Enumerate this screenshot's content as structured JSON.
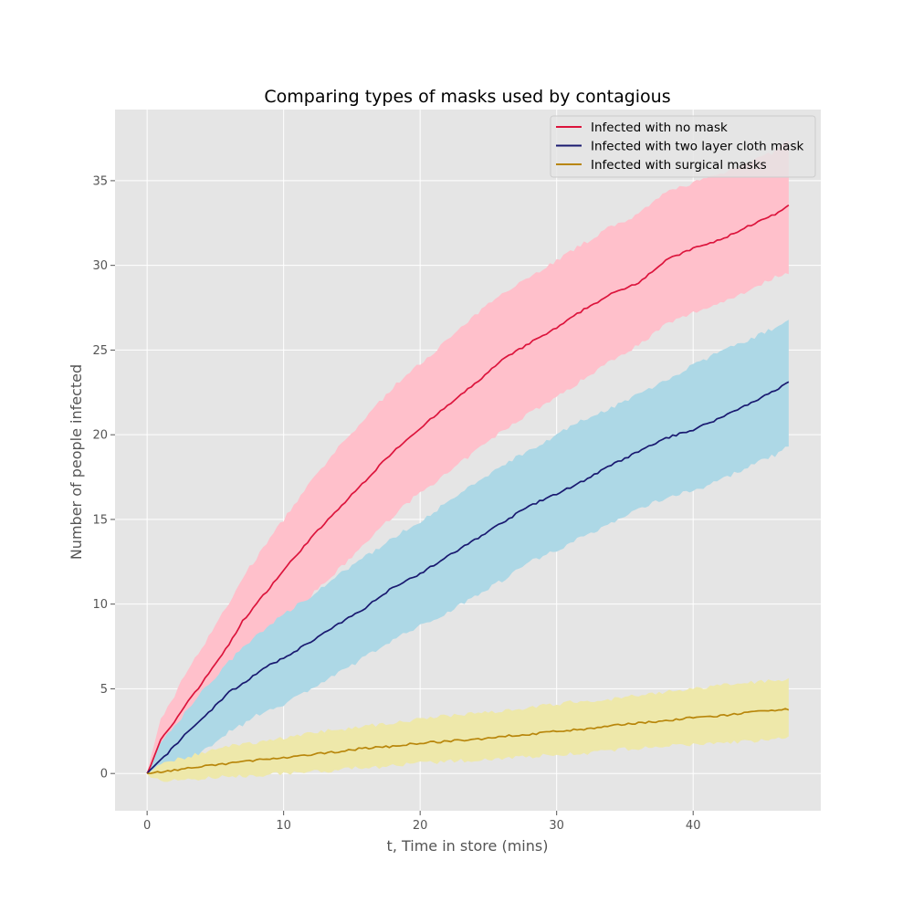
{
  "chart_data": {
    "type": "line",
    "title": "Comparing types of masks used by contagious",
    "xlabel": "t, Time in store (mins)",
    "ylabel": "Number of people infected",
    "xlim": [
      -2.35,
      49.35
    ],
    "ylim": [
      -2.2,
      39.2
    ],
    "xticks": [
      0,
      10,
      20,
      30,
      40
    ],
    "yticks": [
      0,
      5,
      10,
      15,
      20,
      25,
      30,
      35
    ],
    "grid": true,
    "legend_position": "top-right",
    "series": [
      {
        "name": "Infected with no mask",
        "line_color": "#dc143c",
        "band_color": "#ffc0cb",
        "x": [
          0,
          1,
          2,
          3,
          4,
          5,
          6,
          7,
          8,
          9,
          10,
          12,
          14,
          16,
          18,
          20,
          22,
          24,
          26,
          28,
          30,
          32,
          34,
          36,
          38,
          40,
          42,
          44,
          46,
          47
        ],
        "mean": [
          0,
          2.0,
          3.0,
          4.3,
          5.3,
          6.5,
          7.6,
          9.0,
          10.0,
          11.0,
          12.0,
          13.9,
          15.6,
          17.3,
          19.0,
          20.4,
          21.7,
          23.0,
          24.4,
          25.4,
          26.3,
          27.4,
          28.3,
          29.0,
          30.3,
          31.0,
          31.5,
          32.3,
          33.0,
          33.5
        ],
        "lower": [
          0,
          0.8,
          1.5,
          2.4,
          3.3,
          4.2,
          5.2,
          6.4,
          7.3,
          8.1,
          8.9,
          10.5,
          12.0,
          13.6,
          15.2,
          16.6,
          17.7,
          19.0,
          20.2,
          21.3,
          22.2,
          23.3,
          24.4,
          25.3,
          26.5,
          27.2,
          27.8,
          28.5,
          29.3,
          29.6
        ],
        "upper": [
          0,
          3.2,
          4.6,
          6.2,
          7.4,
          8.8,
          10.0,
          11.6,
          12.7,
          13.9,
          15.0,
          17.2,
          19.2,
          21.0,
          22.8,
          24.2,
          25.6,
          27.0,
          28.4,
          29.3,
          30.3,
          31.3,
          32.3,
          33.0,
          34.3,
          34.9,
          35.4,
          36.1,
          36.7,
          37.4
        ]
      },
      {
        "name": "Infected with two layer cloth mask",
        "line_color": "#191970",
        "band_color": "#add8e6",
        "x": [
          0,
          1,
          2,
          3,
          4,
          5,
          6,
          7,
          8,
          9,
          10,
          12,
          14,
          16,
          18,
          20,
          22,
          24,
          26,
          28,
          30,
          32,
          34,
          36,
          38,
          40,
          42,
          44,
          46,
          47
        ],
        "mean": [
          0,
          0.8,
          1.6,
          2.5,
          3.2,
          4.0,
          4.8,
          5.3,
          5.9,
          6.4,
          6.8,
          7.8,
          8.8,
          9.8,
          11.0,
          11.8,
          12.8,
          13.8,
          14.8,
          15.8,
          16.5,
          17.3,
          18.2,
          19.0,
          19.8,
          20.3,
          21.0,
          21.8,
          22.6,
          23.1
        ],
        "lower": [
          0,
          -0.3,
          0.2,
          0.7,
          1.2,
          1.9,
          2.5,
          2.9,
          3.4,
          3.8,
          4.1,
          5.0,
          5.9,
          6.9,
          7.9,
          8.7,
          9.5,
          10.5,
          11.4,
          12.5,
          13.2,
          14.0,
          14.8,
          15.6,
          16.3,
          16.7,
          17.3,
          18.1,
          18.8,
          19.3
        ],
        "upper": [
          0,
          1.8,
          2.8,
          3.8,
          4.8,
          5.7,
          6.6,
          7.4,
          8.1,
          8.8,
          9.4,
          10.5,
          11.7,
          12.8,
          13.9,
          14.9,
          16.0,
          17.1,
          18.2,
          19.1,
          20.0,
          20.9,
          21.6,
          22.4,
          23.2,
          24.1,
          24.9,
          25.6,
          26.3,
          26.8
        ]
      },
      {
        "name": "Infected with surgical masks",
        "line_color": "#b8860b",
        "band_color": "#eee8aa",
        "x": [
          0,
          1,
          2,
          3,
          4,
          5,
          6,
          7,
          8,
          9,
          10,
          12,
          14,
          16,
          18,
          20,
          22,
          24,
          26,
          28,
          30,
          32,
          34,
          36,
          38,
          40,
          42,
          44,
          46,
          47
        ],
        "mean": [
          0,
          0.1,
          0.2,
          0.3,
          0.4,
          0.5,
          0.6,
          0.7,
          0.8,
          0.85,
          0.9,
          1.1,
          1.3,
          1.5,
          1.6,
          1.8,
          1.9,
          2.0,
          2.2,
          2.3,
          2.5,
          2.6,
          2.8,
          3.0,
          3.1,
          3.3,
          3.4,
          3.6,
          3.7,
          3.8
        ],
        "lower": [
          0,
          -0.5,
          -0.4,
          -0.35,
          -0.3,
          -0.25,
          -0.2,
          -0.15,
          -0.1,
          -0.05,
          0,
          0.1,
          0.2,
          0.35,
          0.45,
          0.6,
          0.7,
          0.8,
          0.9,
          1.0,
          1.1,
          1.2,
          1.35,
          1.5,
          1.6,
          1.7,
          1.8,
          1.9,
          2.0,
          2.1
        ],
        "upper": [
          0,
          0.6,
          0.8,
          1.0,
          1.2,
          1.4,
          1.6,
          1.7,
          1.85,
          2.0,
          2.1,
          2.4,
          2.6,
          2.8,
          3.0,
          3.2,
          3.4,
          3.6,
          3.7,
          3.9,
          4.1,
          4.3,
          4.4,
          4.6,
          4.8,
          5.0,
          5.2,
          5.35,
          5.5,
          5.6
        ]
      }
    ]
  }
}
